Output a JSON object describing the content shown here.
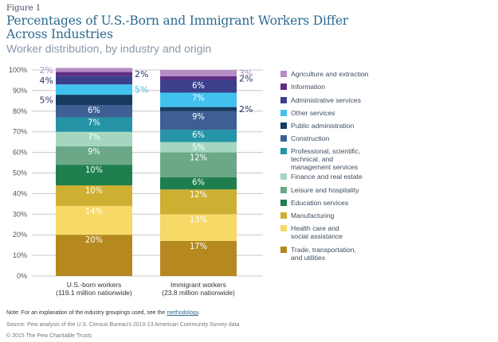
{
  "figure_label": "Figure 1",
  "title": "Percentages of U.S.-Born and Immigrant Workers Differ Across Industries",
  "subtitle": "Worker distribution, by industry and origin",
  "chart_data": {
    "type": "bar",
    "stacked": true,
    "title": "Percentages of U.S.-Born and Immigrant Workers Differ Across Industries",
    "subtitle": "Worker distribution, by industry and origin",
    "xlabel": "",
    "ylabel": "",
    "ylim": [
      0,
      100
    ],
    "yticks": [
      "0%",
      "10%",
      "20%",
      "30%",
      "40%",
      "50%",
      "60%",
      "70%",
      "80%",
      "90%",
      "100%"
    ],
    "grid": true,
    "legend_position": "right",
    "categories": [
      {
        "line1": "U.S.-born workers",
        "line2": "(119.1 million nationwide)"
      },
      {
        "line1": "Immigrant workers",
        "line2": "(23.8 million nationwide)"
      }
    ],
    "series": [
      {
        "name": "Trade, transportation, and utilities",
        "legend_lines": [
          "Trade, transportation,",
          "and utilities"
        ],
        "color": "#b5891f",
        "values": [
          20,
          17
        ],
        "label_pos": [
          "in",
          "in"
        ]
      },
      {
        "name": "Health care and social assistance",
        "legend_lines": [
          "Health care and",
          "social assistance"
        ],
        "color": "#f6d966",
        "values": [
          14,
          13
        ],
        "label_pos": [
          "in",
          "in"
        ]
      },
      {
        "name": "Manufacturing",
        "legend_lines": [
          "Manufacturing"
        ],
        "color": "#cdb032",
        "values": [
          10,
          12
        ],
        "label_pos": [
          "in",
          "in"
        ]
      },
      {
        "name": "Education services",
        "legend_lines": [
          "Education services"
        ],
        "color": "#1f7e4e",
        "values": [
          10,
          6
        ],
        "label_pos": [
          "in",
          "in"
        ]
      },
      {
        "name": "Leisure and hospitality",
        "legend_lines": [
          "Leisure and hospitality"
        ],
        "color": "#6aa888",
        "values": [
          9,
          12
        ],
        "label_pos": [
          "in",
          "in"
        ]
      },
      {
        "name": "Finance and real estate",
        "legend_lines": [
          "Finance and real estate"
        ],
        "color": "#a5d7c0",
        "values": [
          7,
          5
        ],
        "label_pos": [
          "in",
          "in"
        ]
      },
      {
        "name": "Professional, scientific, technical, and management services",
        "legend_lines": [
          "Professional, scientific,",
          "technical, and",
          "management services"
        ],
        "color": "#2594a6",
        "values": [
          7,
          6
        ],
        "label_pos": [
          "in",
          "in"
        ]
      },
      {
        "name": "Construction",
        "legend_lines": [
          "Construction"
        ],
        "color": "#3d5f94",
        "values": [
          6,
          9
        ],
        "label_pos": [
          "in",
          "in"
        ]
      },
      {
        "name": "Public administration",
        "legend_lines": [
          "Public administration"
        ],
        "color": "#173b5e",
        "values": [
          5,
          2
        ],
        "label_pos": [
          "left",
          "right"
        ]
      },
      {
        "name": "Other services",
        "legend_lines": [
          "Other services"
        ],
        "color": "#41c2ee",
        "values": [
          5,
          7
        ],
        "label_pos": [
          "right",
          "in"
        ]
      },
      {
        "name": "Administrative services",
        "legend_lines": [
          "Administrative services"
        ],
        "color": "#3b3f8c",
        "values": [
          4,
          6
        ],
        "label_pos": [
          "left",
          "in"
        ]
      },
      {
        "name": "Information",
        "legend_lines": [
          "Information"
        ],
        "color": "#5e2d82",
        "values": [
          2,
          2
        ],
        "label_pos": [
          "right",
          "right"
        ]
      },
      {
        "name": "Agriculture and extraction",
        "legend_lines": [
          "Agriculture and extraction"
        ],
        "color": "#b58cc4",
        "values": [
          2,
          3
        ],
        "label_pos": [
          "left",
          "right"
        ]
      }
    ],
    "legend_order": [
      "Agriculture and extraction",
      "Information",
      "Administrative services",
      "Other services",
      "Public administration",
      "Construction",
      "Professional, scientific, technical, and management services",
      "Finance and real estate",
      "Leisure and hospitality",
      "Education services",
      "Manufacturing",
      "Health care and social assistance",
      "Trade, transportation, and utilities"
    ]
  },
  "footer": {
    "note_prefix": "Note: For an explanation of the industry groupings used, see the ",
    "note_link": "methodology",
    "note_suffix": ".",
    "source": "Source: Pew analysis of the U.S. Census Bureau's 2010-13 American Community Survey data",
    "copyright": "© 2015 The Pew Charitable Trusts"
  }
}
